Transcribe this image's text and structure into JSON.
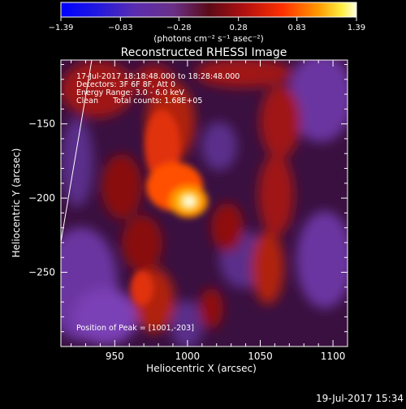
{
  "colorbar": {
    "ticks": [
      "-1.39",
      "-0.83",
      "-0.28",
      "0.28",
      "0.83",
      "1.39"
    ],
    "unit_label": "(photons cm⁻² s⁻¹ asec⁻²)",
    "range": [
      -1.39,
      1.39
    ]
  },
  "footer": {
    "timestamp": "19-Jul-2017 15:34"
  },
  "chart_data": {
    "type": "heatmap",
    "title": "Reconstructed RHESSI Image",
    "xlabel": "Heliocentric X (arcsec)",
    "ylabel": "Heliocentric Y (arcsec)",
    "xlim": [
      913,
      1110
    ],
    "ylim": [
      -300,
      -107
    ],
    "x_ticks": [
      950,
      1000,
      1050,
      1100
    ],
    "y_ticks": [
      -150,
      -200,
      -250
    ],
    "y_tick_labels": [
      "−150",
      "−200",
      "−250"
    ],
    "info_lines": [
      "17-Jul-2017 18:18:48.000 to 18:28:48.000",
      "Detectors: 3F 6F 8F, Att 0",
      "Energy Range: 3.0 - 6.0 keV",
      "Clean      Total counts: 1.68E+05"
    ],
    "peak_label": "Position of Peak = [1001,-203]",
    "peak": [
      1001,
      -203
    ]
  }
}
